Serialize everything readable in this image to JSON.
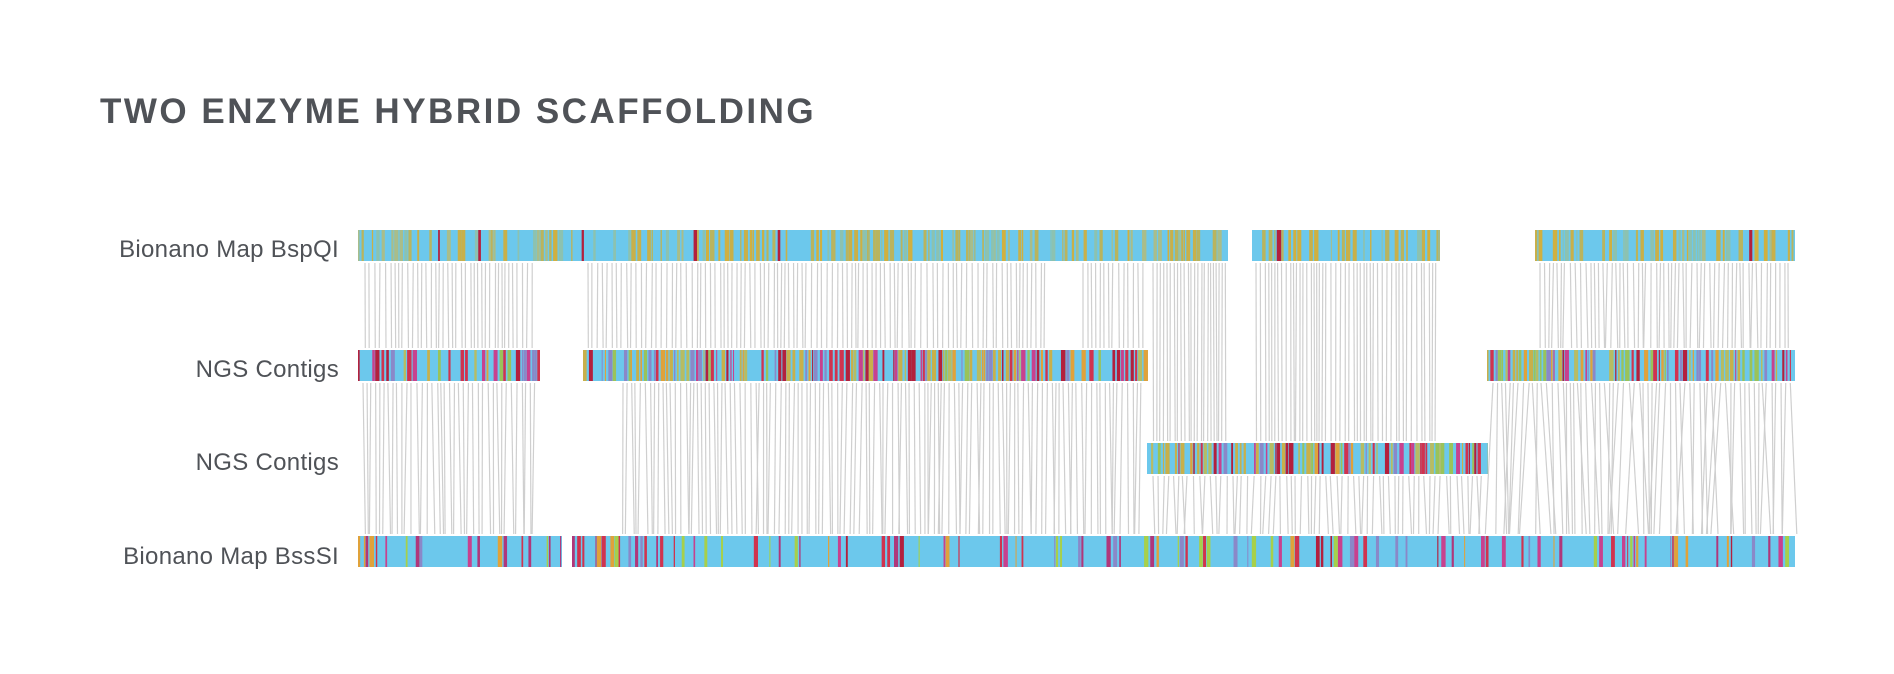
{
  "title": "TWO ENZYME HYBRID SCAFFOLDING",
  "tracks": [
    {
      "label": "Bionano Map BspQI",
      "kind": "bionano_bspqi"
    },
    {
      "label": "NGS Contigs",
      "kind": "ngs"
    },
    {
      "label": "NGS Contigs",
      "kind": "ngs"
    },
    {
      "label": "Bionano Map BssSI",
      "kind": "bionano_bsssi"
    }
  ],
  "colors": {
    "text": "#4f5257",
    "bspqi_base": "#6cc8ec",
    "bspqi_stripes": [
      "#c8b04a",
      "#b9b45e",
      "#a9bd8a",
      "#d0b040",
      "#8cc2b0"
    ],
    "ngs_stripes": [
      "#6cc8ec",
      "#c8b04a",
      "#d0334f",
      "#c8418e",
      "#8a88c8",
      "#b7bc63",
      "#e0a23a",
      "#9ac35a"
    ],
    "bsssi_base": "#6cc8ec",
    "bsssi_stripes": [
      "#c8418e",
      "#8a88c8",
      "#b0377a",
      "#a7d04a",
      "#d0334f",
      "#e0a23a"
    ],
    "accent_red": "#b3203d",
    "alignment_line": "#cfcfcf"
  }
}
